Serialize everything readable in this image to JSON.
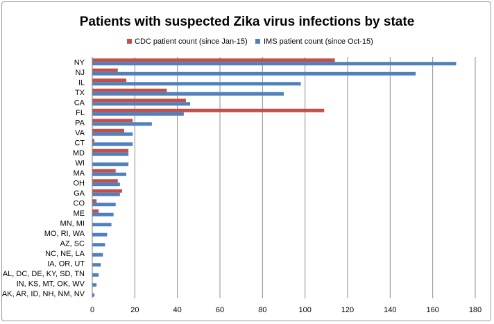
{
  "chart_data": {
    "type": "bar",
    "orientation": "horizontal",
    "title": "Patients with suspected Zika virus infections by state",
    "categories": [
      "NY",
      "NJ",
      "IL",
      "TX",
      "CA",
      "FL",
      "PA",
      "VA",
      "CT",
      "MD",
      "WI",
      "MA",
      "OH",
      "GA",
      "CO",
      "ME",
      "MN, MI",
      "MO, RI, WA",
      "AZ, SC",
      "NC, NE, LA",
      "IA, OR, UT",
      "AL, DC, DE, KY, SD, TN",
      "IN, KS, MT, OK, WV",
      "AK, AR, ID, NH, NM, NV"
    ],
    "series": [
      {
        "name": "CDC patient count (since Jan-15)",
        "color": "#c0504d",
        "values": [
          114,
          12,
          16,
          35,
          44,
          109,
          19,
          15,
          1,
          17,
          0,
          11,
          12,
          14,
          2,
          3,
          0,
          0,
          0,
          0,
          0,
          0,
          0,
          0
        ]
      },
      {
        "name": "IMS patient count (since Oct-15)",
        "color": "#4f81bd",
        "values": [
          171,
          152,
          98,
          90,
          46,
          43,
          28,
          19,
          19,
          17,
          17,
          16,
          13,
          13,
          11,
          10,
          9,
          7,
          6,
          5,
          4,
          3,
          2,
          1
        ]
      }
    ],
    "xlim": [
      0,
      180
    ],
    "xticks": [
      0,
      20,
      40,
      60,
      80,
      100,
      120,
      140,
      160,
      180
    ],
    "grid": "vertical",
    "legend_position": "top"
  }
}
